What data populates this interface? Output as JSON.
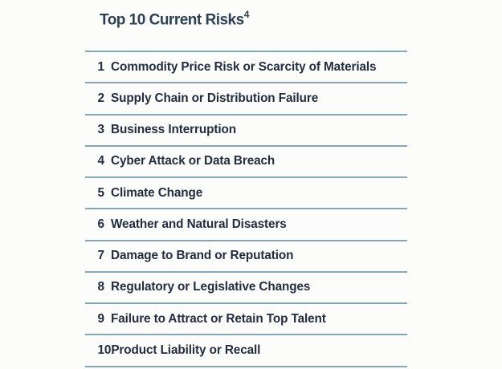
{
  "page": {
    "background": "#fcfcfa"
  },
  "colors": {
    "title_text": "#2e4154",
    "row_text": "#232d40",
    "divider": "#84a8b4"
  },
  "title": {
    "text": "Top 10 Current Risks",
    "footnote_superscript": "4"
  },
  "risk_list": {
    "items": [
      {
        "rank": "1",
        "label": "Commodity Price Risk or Scarcity of Materials"
      },
      {
        "rank": "2",
        "label": "Supply Chain or Distribution Failure"
      },
      {
        "rank": "3",
        "label": "Business Interruption"
      },
      {
        "rank": "4",
        "label": "Cyber Attack or Data Breach"
      },
      {
        "rank": "5",
        "label": "Climate Change"
      },
      {
        "rank": "6",
        "label": "Weather and Natural Disasters"
      },
      {
        "rank": "7",
        "label": "Damage to Brand or Reputation"
      },
      {
        "rank": "8",
        "label": "Regulatory or Legislative Changes"
      },
      {
        "rank": "9",
        "label": "Failure to Attract or Retain Top Talent"
      },
      {
        "rank": "10",
        "label": "Product Liability or Recall"
      }
    ]
  }
}
